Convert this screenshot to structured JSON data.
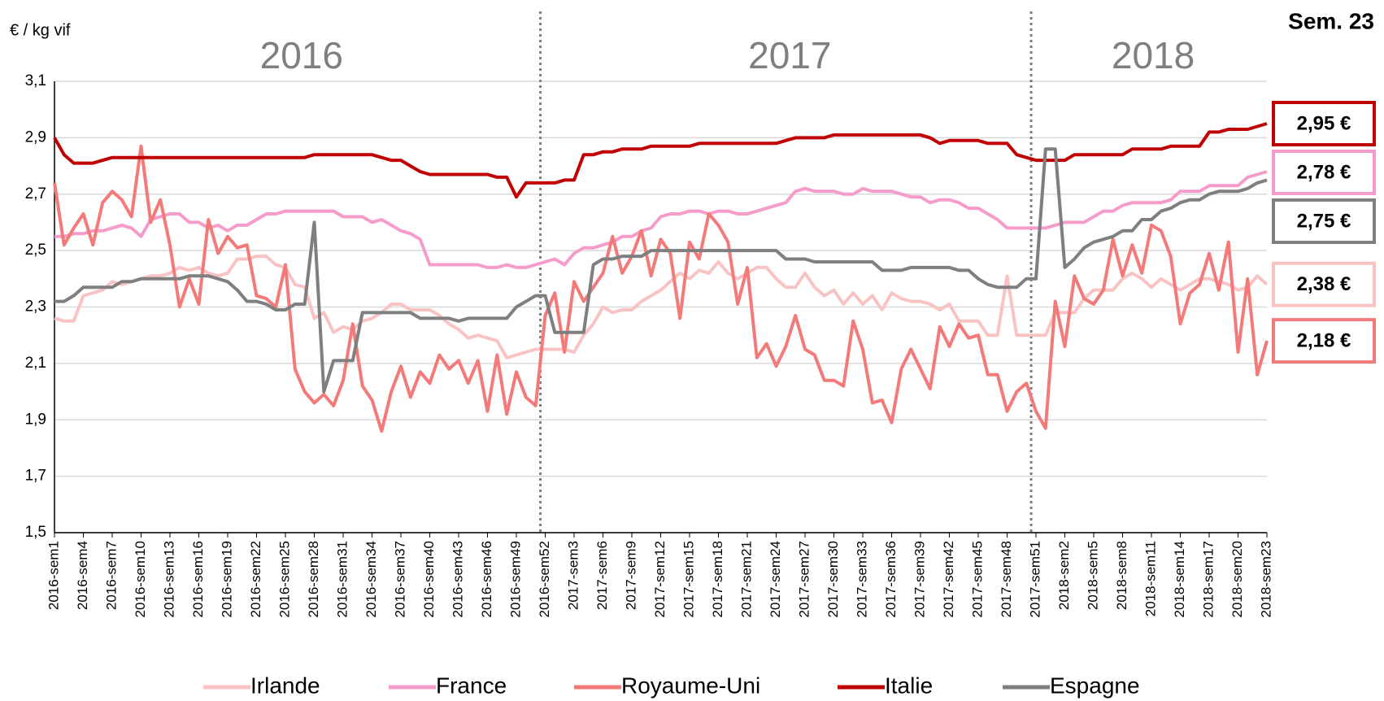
{
  "chart_data": {
    "type": "line",
    "y_label": "€ / kg vif",
    "annotation": "Sem. 23",
    "year_labels": [
      "2016",
      "2017",
      "2018"
    ],
    "ylim": [
      1.5,
      3.1
    ],
    "yticks": [
      {
        "value": 1.5,
        "label": "1,5"
      },
      {
        "value": 1.7,
        "label": "1,7"
      },
      {
        "value": 1.9,
        "label": "1,9"
      },
      {
        "value": 2.1,
        "label": "2,1"
      },
      {
        "value": 2.3,
        "label": "2,3"
      },
      {
        "value": 2.5,
        "label": "2,5"
      },
      {
        "value": 2.7,
        "label": "2,7"
      },
      {
        "value": 2.9,
        "label": "2,9"
      },
      {
        "value": 3.1,
        "label": "3,1"
      }
    ],
    "grid": true,
    "legend": "bottom",
    "categories": [
      "2016-sem1",
      null,
      null,
      "2016-sem4",
      null,
      null,
      "2016-sem7",
      null,
      null,
      "2016-sem10",
      null,
      null,
      "2016-sem13",
      null,
      null,
      "2016-sem16",
      null,
      null,
      "2016-sem19",
      null,
      null,
      "2016-sem22",
      null,
      null,
      "2016-sem25",
      null,
      null,
      "2016-sem28",
      null,
      null,
      "2016-sem31",
      null,
      null,
      "2016-sem34",
      null,
      null,
      "2016-sem37",
      null,
      null,
      "2016-sem40",
      null,
      null,
      "2016-sem43",
      null,
      null,
      "2016-sem46",
      null,
      null,
      "2016-sem49",
      null,
      null,
      "2016-sem52",
      null,
      null,
      "2017-sem3",
      null,
      null,
      "2017-sem6",
      null,
      null,
      "2017-sem9",
      null,
      null,
      "2017-sem12",
      null,
      null,
      "2017-sem15",
      null,
      null,
      "2017-sem18",
      null,
      null,
      "2017-sem21",
      null,
      null,
      "2017-sem24",
      null,
      null,
      "2017-sem27",
      null,
      null,
      "2017-sem30",
      null,
      null,
      "2017-sem33",
      null,
      null,
      "2017-sem36",
      null,
      null,
      "2017-sem39",
      null,
      null,
      "2017-sem42",
      null,
      null,
      "2017-sem45",
      null,
      null,
      "2017-sem48",
      null,
      null,
      "2017-sem51",
      null,
      null,
      "2018-sem2",
      null,
      null,
      "2018-sem5",
      null,
      null,
      "2018-sem8",
      null,
      null,
      "2018-sem11",
      null,
      null,
      "2018-sem14",
      null,
      null,
      "2018-sem17",
      null,
      null,
      "2018-sem20",
      null,
      null,
      "2018-sem23"
    ],
    "series": [
      {
        "name": "Irlande",
        "color": "#f9c3c3",
        "end_label": "2,38 €",
        "values": [
          2.26,
          2.25,
          2.25,
          2.34,
          2.35,
          2.36,
          2.39,
          2.38,
          2.39,
          2.4,
          2.41,
          2.41,
          2.42,
          2.44,
          2.43,
          2.44,
          2.42,
          2.41,
          2.42,
          2.47,
          2.47,
          2.48,
          2.48,
          2.45,
          2.44,
          2.38,
          2.37,
          2.26,
          2.28,
          2.21,
          2.23,
          2.22,
          2.25,
          2.26,
          2.28,
          2.31,
          2.31,
          2.29,
          2.29,
          2.29,
          2.27,
          2.24,
          2.22,
          2.19,
          2.2,
          2.19,
          2.18,
          2.12,
          2.13,
          2.14,
          2.15,
          2.15,
          2.15,
          2.15,
          2.14,
          2.2,
          2.24,
          2.3,
          2.28,
          2.29,
          2.29,
          2.32,
          2.34,
          2.36,
          2.39,
          2.42,
          2.4,
          2.43,
          2.42,
          2.46,
          2.42,
          2.4,
          2.42,
          2.44,
          2.44,
          2.4,
          2.37,
          2.37,
          2.42,
          2.37,
          2.34,
          2.36,
          2.31,
          2.35,
          2.31,
          2.34,
          2.29,
          2.35,
          2.33,
          2.32,
          2.32,
          2.31,
          2.29,
          2.31,
          2.25,
          2.25,
          2.25,
          2.2,
          2.2,
          2.41,
          2.2,
          2.2,
          2.2,
          2.2,
          2.28,
          2.28,
          2.28,
          2.33,
          2.36,
          2.36,
          2.36,
          2.4,
          2.42,
          2.4,
          2.37,
          2.4,
          2.38,
          2.36,
          2.38,
          2.4,
          2.4,
          2.39,
          2.38,
          2.36,
          2.37,
          2.41,
          2.38
        ]
      },
      {
        "name": "France",
        "color": "#f59ccb",
        "end_label": "2,78 €",
        "values": [
          2.55,
          2.55,
          2.56,
          2.56,
          2.57,
          2.57,
          2.58,
          2.59,
          2.58,
          2.55,
          2.61,
          2.62,
          2.63,
          2.63,
          2.6,
          2.6,
          2.58,
          2.59,
          2.57,
          2.59,
          2.59,
          2.61,
          2.63,
          2.63,
          2.64,
          2.64,
          2.64,
          2.64,
          2.64,
          2.64,
          2.62,
          2.62,
          2.62,
          2.6,
          2.61,
          2.59,
          2.57,
          2.56,
          2.54,
          2.45,
          2.45,
          2.45,
          2.45,
          2.45,
          2.45,
          2.44,
          2.44,
          2.45,
          2.44,
          2.44,
          2.45,
          2.46,
          2.47,
          2.45,
          2.49,
          2.51,
          2.51,
          2.52,
          2.53,
          2.55,
          2.55,
          2.57,
          2.58,
          2.62,
          2.63,
          2.63,
          2.64,
          2.64,
          2.63,
          2.64,
          2.64,
          2.63,
          2.63,
          2.64,
          2.65,
          2.66,
          2.67,
          2.71,
          2.72,
          2.71,
          2.71,
          2.71,
          2.7,
          2.7,
          2.72,
          2.71,
          2.71,
          2.71,
          2.7,
          2.69,
          2.69,
          2.67,
          2.68,
          2.68,
          2.67,
          2.65,
          2.65,
          2.63,
          2.61,
          2.58,
          2.58,
          2.58,
          2.58,
          2.58,
          2.59,
          2.6,
          2.6,
          2.6,
          2.62,
          2.64,
          2.64,
          2.66,
          2.67,
          2.67,
          2.67,
          2.67,
          2.68,
          2.71,
          2.71,
          2.71,
          2.73,
          2.73,
          2.73,
          2.73,
          2.76,
          2.77,
          2.78
        ]
      },
      {
        "name": "Royaume-Uni",
        "color": "#f47a7a",
        "end_label": "2,18 €",
        "values": [
          2.74,
          2.52,
          2.58,
          2.63,
          2.52,
          2.67,
          2.71,
          2.68,
          2.62,
          2.87,
          2.6,
          2.68,
          2.52,
          2.3,
          2.4,
          2.31,
          2.61,
          2.49,
          2.55,
          2.51,
          2.52,
          2.34,
          2.33,
          2.3,
          2.45,
          2.08,
          2.0,
          1.96,
          1.99,
          1.95,
          2.04,
          2.24,
          2.02,
          1.97,
          1.86,
          2.0,
          2.09,
          1.98,
          2.07,
          2.03,
          2.13,
          2.08,
          2.11,
          2.03,
          2.11,
          1.93,
          2.13,
          1.92,
          2.07,
          1.98,
          1.95,
          2.27,
          2.35,
          2.14,
          2.39,
          2.32,
          2.37,
          2.42,
          2.55,
          2.42,
          2.48,
          2.57,
          2.41,
          2.54,
          2.49,
          2.26,
          2.53,
          2.47,
          2.63,
          2.59,
          2.53,
          2.31,
          2.44,
          2.12,
          2.17,
          2.09,
          2.16,
          2.27,
          2.15,
          2.13,
          2.04,
          2.04,
          2.02,
          2.25,
          2.15,
          1.96,
          1.97,
          1.89,
          2.08,
          2.15,
          2.08,
          2.01,
          2.23,
          2.16,
          2.24,
          2.19,
          2.2,
          2.06,
          2.06,
          1.93,
          2.0,
          2.03,
          1.93,
          1.87,
          2.32,
          2.16,
          2.41,
          2.33,
          2.31,
          2.36,
          2.54,
          2.41,
          2.52,
          2.42,
          2.59,
          2.57,
          2.48,
          2.24,
          2.35,
          2.38,
          2.49,
          2.36,
          2.53,
          2.14,
          2.4,
          2.06,
          2.18
        ]
      },
      {
        "name": "Italie",
        "color": "#c00000",
        "end_label": "2,95 €",
        "values": [
          2.9,
          2.84,
          2.81,
          2.81,
          2.81,
          2.82,
          2.83,
          2.83,
          2.83,
          2.83,
          2.83,
          2.83,
          2.83,
          2.83,
          2.83,
          2.83,
          2.83,
          2.83,
          2.83,
          2.83,
          2.83,
          2.83,
          2.83,
          2.83,
          2.83,
          2.83,
          2.83,
          2.84,
          2.84,
          2.84,
          2.84,
          2.84,
          2.84,
          2.84,
          2.83,
          2.82,
          2.82,
          2.8,
          2.78,
          2.77,
          2.77,
          2.77,
          2.77,
          2.77,
          2.77,
          2.77,
          2.76,
          2.76,
          2.69,
          2.74,
          2.74,
          2.74,
          2.74,
          2.75,
          2.75,
          2.84,
          2.84,
          2.85,
          2.85,
          2.86,
          2.86,
          2.86,
          2.87,
          2.87,
          2.87,
          2.87,
          2.87,
          2.88,
          2.88,
          2.88,
          2.88,
          2.88,
          2.88,
          2.88,
          2.88,
          2.88,
          2.89,
          2.9,
          2.9,
          2.9,
          2.9,
          2.91,
          2.91,
          2.91,
          2.91,
          2.91,
          2.91,
          2.91,
          2.91,
          2.91,
          2.91,
          2.9,
          2.88,
          2.89,
          2.89,
          2.89,
          2.89,
          2.88,
          2.88,
          2.88,
          2.84,
          2.83,
          2.82,
          2.82,
          2.82,
          2.82,
          2.84,
          2.84,
          2.84,
          2.84,
          2.84,
          2.84,
          2.86,
          2.86,
          2.86,
          2.86,
          2.87,
          2.87,
          2.87,
          2.87,
          2.92,
          2.92,
          2.93,
          2.93,
          2.93,
          2.94,
          2.95
        ]
      },
      {
        "name": "Espagne",
        "color": "#7f7f7f",
        "end_label": "2,75 €",
        "values": [
          2.32,
          2.32,
          2.34,
          2.37,
          2.37,
          2.37,
          2.37,
          2.39,
          2.39,
          2.4,
          2.4,
          2.4,
          2.4,
          2.4,
          2.41,
          2.41,
          2.41,
          2.4,
          2.39,
          2.36,
          2.32,
          2.32,
          2.31,
          2.29,
          2.29,
          2.31,
          2.31,
          2.6,
          2.0,
          2.11,
          2.11,
          2.11,
          2.28,
          2.28,
          2.28,
          2.28,
          2.28,
          2.28,
          2.26,
          2.26,
          2.26,
          2.26,
          2.25,
          2.26,
          2.26,
          2.26,
          2.26,
          2.26,
          2.3,
          2.32,
          2.34,
          2.34,
          2.21,
          2.21,
          2.21,
          2.21,
          2.45,
          2.47,
          2.47,
          2.48,
          2.48,
          2.48,
          2.5,
          2.5,
          2.5,
          2.5,
          2.5,
          2.5,
          2.5,
          2.5,
          2.5,
          2.5,
          2.5,
          2.5,
          2.5,
          2.5,
          2.47,
          2.47,
          2.47,
          2.46,
          2.46,
          2.46,
          2.46,
          2.46,
          2.46,
          2.46,
          2.43,
          2.43,
          2.43,
          2.44,
          2.44,
          2.44,
          2.44,
          2.44,
          2.43,
          2.43,
          2.4,
          2.38,
          2.37,
          2.37,
          2.37,
          2.4,
          2.4,
          2.86,
          2.86,
          2.44,
          2.47,
          2.51,
          2.53,
          2.54,
          2.55,
          2.57,
          2.57,
          2.61,
          2.61,
          2.64,
          2.65,
          2.67,
          2.68,
          2.68,
          2.7,
          2.71,
          2.71,
          2.71,
          2.72,
          2.74,
          2.75
        ]
      }
    ]
  }
}
